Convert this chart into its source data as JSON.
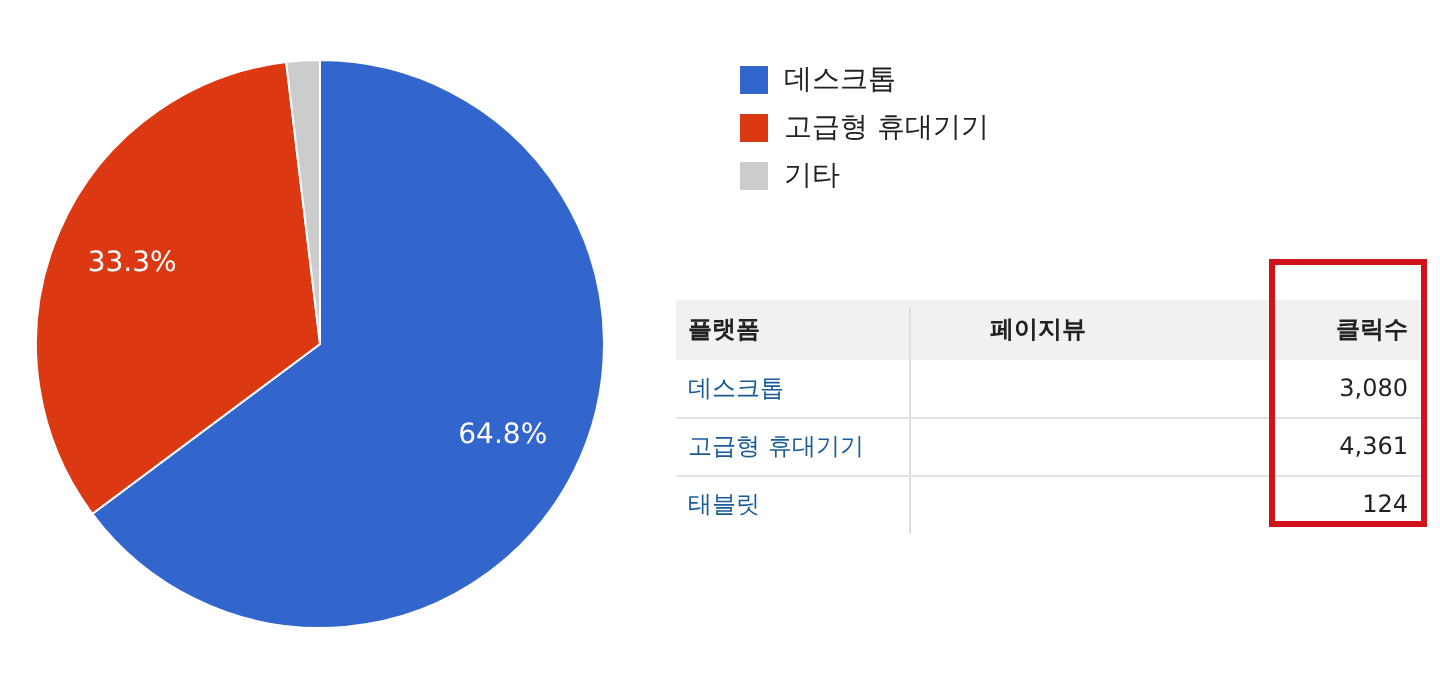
{
  "chart_data": [
    {
      "type": "pie",
      "categories": [
        "데스크톱",
        "고급형 휴대기기",
        "기타"
      ],
      "values": [
        64.8,
        33.3,
        1.9
      ],
      "colors": [
        "#3366cc",
        "#dc3912",
        "#cccccc"
      ],
      "value_labels": [
        "64.8%",
        "33.3%",
        null
      ],
      "legend": "right"
    },
    {
      "type": "other",
      "categories": [
        "데스크톱",
        "고급형 휴대기기",
        "태블릿"
      ],
      "values": [
        3080,
        4361,
        124
      ],
      "value_labels": [
        "3,080",
        "4,361",
        "124"
      ],
      "annotations": [
        "플랫폼",
        "페이지뷰",
        "클릭수"
      ]
    }
  ]
}
